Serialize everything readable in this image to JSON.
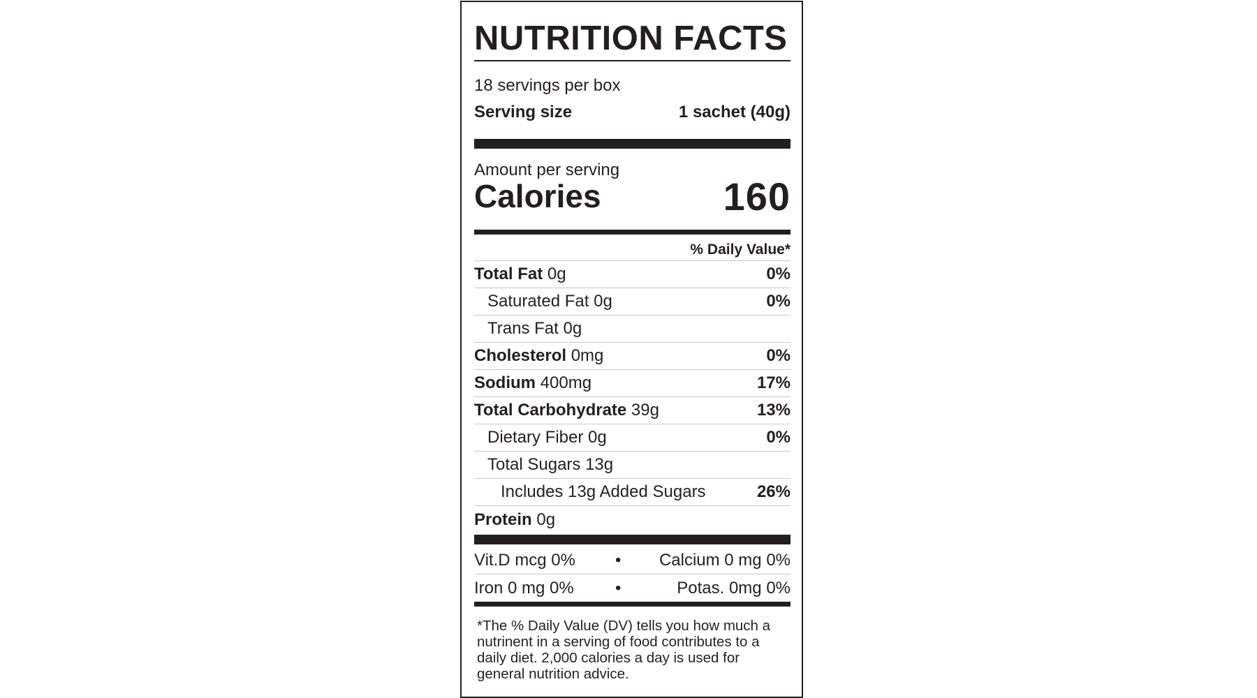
{
  "title": "NUTRITION FACTS",
  "servings_per_container": "18 servings per box",
  "serving_size": {
    "label": "Serving size",
    "value": "1 sachet (40g)"
  },
  "amount_per_serving": "Amount per serving",
  "calories": {
    "label": "Calories",
    "value": "160"
  },
  "daily_value_header": "% Daily Value*",
  "nutrients": [
    {
      "name": "Total Fat",
      "amount": "0g",
      "dv": "0%",
      "bold": true,
      "indent": 0
    },
    {
      "name": "Saturated Fat",
      "amount": "0g",
      "dv": "0%",
      "bold": false,
      "indent": 1
    },
    {
      "name": "Trans Fat",
      "amount": "0g",
      "dv": "",
      "bold": false,
      "indent": 1
    },
    {
      "name": "Cholesterol",
      "amount": "0mg",
      "dv": "0%",
      "bold": true,
      "indent": 0
    },
    {
      "name": "Sodium",
      "amount": "400mg",
      "dv": "17%",
      "bold": true,
      "indent": 0
    },
    {
      "name": "Total Carbohydrate",
      "amount": "39g",
      "dv": "13%",
      "bold": true,
      "indent": 0
    },
    {
      "name": "Dietary Fiber",
      "amount": "0g",
      "dv": "0%",
      "bold": false,
      "indent": 1
    },
    {
      "name": "Total Sugars",
      "amount": "13g",
      "dv": "",
      "bold": false,
      "indent": 1
    },
    {
      "name": "Includes 13g Added Sugars",
      "amount": "",
      "dv": "26%",
      "bold": false,
      "indent": 2
    },
    {
      "name": "Protein",
      "amount": "0g",
      "dv": "",
      "bold": true,
      "indent": 0
    }
  ],
  "vitamins": [
    {
      "left": "Vit.D mcg 0%",
      "right": "Calcium 0 mg 0%"
    },
    {
      "left": "Iron 0 mg 0%",
      "right": "Potas. 0mg 0%"
    }
  ],
  "bullet": "•",
  "footnote": "*The % Daily Value (DV) tells you how much a nutrinent in a serving of food contributes to a daily diet. 2,000 calories a day is used for general nutrition advice."
}
